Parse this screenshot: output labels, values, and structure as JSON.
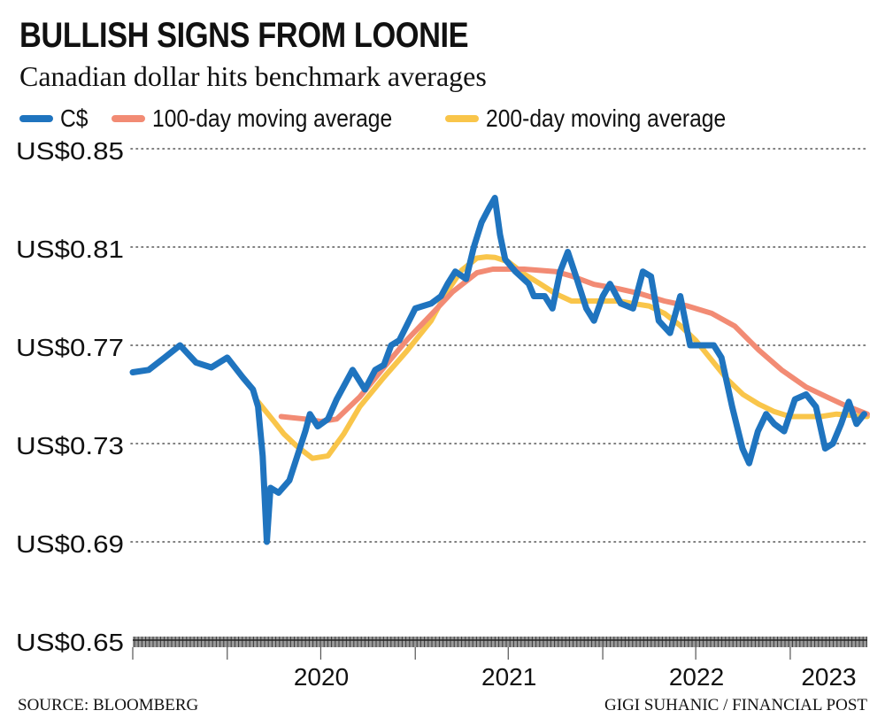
{
  "title": "BULLISH SIGNS FROM LOONIE",
  "subtitle": "Canadian dollar hits benchmark averages",
  "footer": {
    "source": "SOURCE: BLOOMBERG",
    "credit": "GIGI SUHANIC / FINANCIAL POST"
  },
  "colors": {
    "cad": "#1f74bf",
    "ma100": "#f28b74",
    "ma200": "#f9c54a",
    "grid": "#555555",
    "text": "#111111"
  },
  "chart_data": {
    "type": "line",
    "xlabel": "",
    "ylabel": "",
    "ylim": [
      0.65,
      0.85
    ],
    "y_ticks": [
      0.65,
      0.69,
      0.73,
      0.77,
      0.81,
      0.85
    ],
    "y_tick_labels": [
      "US$0.65",
      "US$0.69",
      "US$0.73",
      "US$0.77",
      "US$0.81",
      "US$0.85"
    ],
    "xlim": [
      "2019-07-01",
      "2023-05-31"
    ],
    "x_tick_labels": [
      "2020",
      "2021",
      "2022",
      "2023"
    ],
    "x_tick_dates": [
      "2020-01-01",
      "2021-01-01",
      "2022-01-01",
      "2023-01-01"
    ],
    "legend": "top",
    "grid": "horizontal-dotted",
    "series": [
      {
        "name": "C$",
        "color": "#1f74bf",
        "x": [
          "2019-07-01",
          "2019-08-01",
          "2019-09-01",
          "2019-10-01",
          "2019-11-01",
          "2019-12-01",
          "2020-01-01",
          "2020-01-31",
          "2020-02-20",
          "2020-03-01",
          "2020-03-10",
          "2020-03-18",
          "2020-03-25",
          "2020-04-10",
          "2020-05-01",
          "2020-06-01",
          "2020-06-10",
          "2020-06-25",
          "2020-07-15",
          "2020-08-01",
          "2020-09-01",
          "2020-09-25",
          "2020-10-15",
          "2020-11-01",
          "2020-11-15",
          "2020-12-01",
          "2021-01-01",
          "2021-02-01",
          "2021-02-20",
          "2021-03-05",
          "2021-03-20",
          "2021-04-10",
          "2021-04-25",
          "2021-05-10",
          "2021-05-25",
          "2021-06-05",
          "2021-06-15",
          "2021-06-25",
          "2021-07-15",
          "2021-08-10",
          "2021-08-20",
          "2021-09-10",
          "2021-09-25",
          "2021-10-10",
          "2021-10-25",
          "2021-11-10",
          "2021-11-30",
          "2021-12-15",
          "2022-01-01",
          "2022-01-15",
          "2022-02-05",
          "2022-03-01",
          "2022-03-20",
          "2022-04-05",
          "2022-04-20",
          "2022-05-12",
          "2022-06-01",
          "2022-06-20",
          "2022-07-14",
          "2022-08-05",
          "2022-08-20",
          "2022-09-10",
          "2022-09-30",
          "2022-10-13",
          "2022-10-30",
          "2022-11-15",
          "2022-12-01",
          "2022-12-20",
          "2023-01-10",
          "2023-02-01",
          "2023-02-20",
          "2023-03-10",
          "2023-03-25",
          "2023-04-10",
          "2023-04-25",
          "2023-05-10",
          "2023-05-25"
        ],
        "values": [
          0.759,
          0.76,
          0.765,
          0.77,
          0.763,
          0.761,
          0.765,
          0.757,
          0.752,
          0.745,
          0.725,
          0.69,
          0.712,
          0.71,
          0.715,
          0.735,
          0.742,
          0.737,
          0.74,
          0.748,
          0.76,
          0.752,
          0.76,
          0.762,
          0.77,
          0.772,
          0.785,
          0.787,
          0.79,
          0.795,
          0.8,
          0.797,
          0.81,
          0.82,
          0.826,
          0.83,
          0.815,
          0.805,
          0.8,
          0.795,
          0.79,
          0.79,
          0.785,
          0.8,
          0.808,
          0.798,
          0.785,
          0.78,
          0.79,
          0.795,
          0.787,
          0.785,
          0.8,
          0.798,
          0.78,
          0.775,
          0.79,
          0.77,
          0.77,
          0.77,
          0.765,
          0.745,
          0.728,
          0.722,
          0.735,
          0.742,
          0.738,
          0.735,
          0.748,
          0.75,
          0.745,
          0.728,
          0.73,
          0.738,
          0.747,
          0.738,
          0.742
        ]
      },
      {
        "name": "100-day moving average",
        "color": "#f28b74",
        "x": [
          "2020-04-15",
          "2020-06-01",
          "2020-07-01",
          "2020-08-01",
          "2020-09-15",
          "2020-11-01",
          "2020-12-15",
          "2021-02-01",
          "2021-03-15",
          "2021-05-01",
          "2021-06-01",
          "2021-07-01",
          "2021-08-01",
          "2021-09-01",
          "2021-10-01",
          "2021-11-01",
          "2021-12-15",
          "2022-02-01",
          "2022-03-15",
          "2022-05-01",
          "2022-06-15",
          "2022-08-01",
          "2022-09-15",
          "2022-11-01",
          "2022-12-15",
          "2023-02-01",
          "2023-03-15",
          "2023-04-15",
          "2023-05-31"
        ],
        "values": [
          0.741,
          0.74,
          0.739,
          0.74,
          0.749,
          0.761,
          0.772,
          0.7825,
          0.7918,
          0.7995,
          0.801,
          0.801,
          0.801,
          0.8005,
          0.8,
          0.7982,
          0.7948,
          0.793,
          0.791,
          0.788,
          0.786,
          0.783,
          0.7778,
          0.768,
          0.76,
          0.753,
          0.7488,
          0.7458,
          0.742
        ]
      },
      {
        "name": "200-day moving average",
        "color": "#f9c54a",
        "x": [
          "2020-03-01",
          "2020-04-01",
          "2020-04-20",
          "2020-05-15",
          "2020-06-15",
          "2020-07-15",
          "2020-08-15",
          "2020-09-15",
          "2020-11-01",
          "2020-12-15",
          "2021-02-01",
          "2021-03-01",
          "2021-04-01",
          "2021-05-01",
          "2021-05-20",
          "2021-06-05",
          "2021-07-01",
          "2021-08-01",
          "2021-09-01",
          "2021-10-01",
          "2021-11-01",
          "2021-12-01",
          "2022-01-01",
          "2022-02-01",
          "2022-03-01",
          "2022-04-01",
          "2022-05-01",
          "2022-06-01",
          "2022-07-01",
          "2022-08-01",
          "2022-09-01",
          "2022-10-01",
          "2022-11-01",
          "2022-12-01",
          "2023-01-01",
          "2023-02-01",
          "2023-03-01",
          "2023-04-01",
          "2023-05-31"
        ],
        "values": [
          0.747,
          0.739,
          0.734,
          0.729,
          0.724,
          0.725,
          0.734,
          0.745,
          0.757,
          0.7675,
          0.78,
          0.791,
          0.8005,
          0.8055,
          0.806,
          0.8058,
          0.804,
          0.799,
          0.795,
          0.791,
          0.788,
          0.788,
          0.788,
          0.788,
          0.787,
          0.786,
          0.783,
          0.778,
          0.772,
          0.764,
          0.756,
          0.75,
          0.746,
          0.743,
          0.741,
          0.741,
          0.741,
          0.742,
          0.741
        ]
      }
    ]
  }
}
